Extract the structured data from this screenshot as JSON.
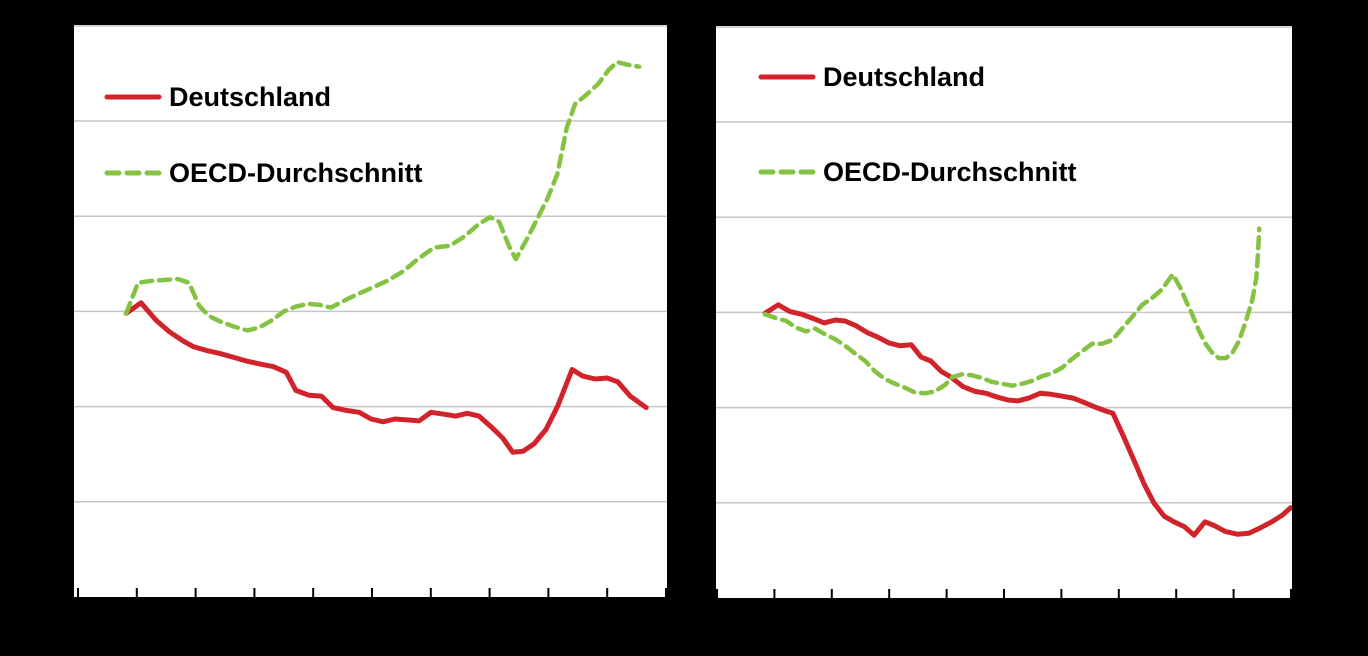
{
  "page": {
    "background": "#000000",
    "plot_background": "#ffffff",
    "gridline_color": "#c6c6c6",
    "axis_color": "#000000"
  },
  "chart_data": [
    {
      "type": "line",
      "title": "",
      "xlabel": "",
      "ylabel": "",
      "legend_position": "top-left-inside",
      "grid": "horizontal",
      "x_axis": {
        "tick_count": 11,
        "tick_labels_visible": false,
        "x_unit": "percent of plot width"
      },
      "y_axis": {
        "gridline_count": 5,
        "tick_labels_visible": false,
        "unit": "gridline intervals above x-axis",
        "range": [
          0,
          6
        ]
      },
      "series": [
        {
          "name": "Deutschland",
          "color": "#d2232a",
          "line_style": "solid",
          "points": [
            [
              8.8,
              2.98
            ],
            [
              11.3,
              3.09
            ],
            [
              13.8,
              2.91
            ],
            [
              16.0,
              2.79
            ],
            [
              18.4,
              2.69
            ],
            [
              20.1,
              2.63
            ],
            [
              22.3,
              2.59
            ],
            [
              24.5,
              2.56
            ],
            [
              26.8,
              2.52
            ],
            [
              29.0,
              2.48
            ],
            [
              31.2,
              2.45
            ],
            [
              33.6,
              2.42
            ],
            [
              35.8,
              2.36
            ],
            [
              37.4,
              2.17
            ],
            [
              39.6,
              2.12
            ],
            [
              41.7,
              2.11
            ],
            [
              43.7,
              1.99
            ],
            [
              45.9,
              1.96
            ],
            [
              48.1,
              1.94
            ],
            [
              50.1,
              1.87
            ],
            [
              52.1,
              1.84
            ],
            [
              54.1,
              1.87
            ],
            [
              56.2,
              1.86
            ],
            [
              58.2,
              1.85
            ],
            [
              60.2,
              1.94
            ],
            [
              62.4,
              1.92
            ],
            [
              64.4,
              1.9
            ],
            [
              66.3,
              1.93
            ],
            [
              68.3,
              1.9
            ],
            [
              70.3,
              1.79
            ],
            [
              72.3,
              1.67
            ],
            [
              74.0,
              1.52
            ],
            [
              75.7,
              1.53
            ],
            [
              77.6,
              1.61
            ],
            [
              79.6,
              1.76
            ],
            [
              81.6,
              2.01
            ],
            [
              84.0,
              2.39
            ],
            [
              85.8,
              2.32
            ],
            [
              87.9,
              2.29
            ],
            [
              89.9,
              2.3
            ],
            [
              91.7,
              2.26
            ],
            [
              93.8,
              2.11
            ],
            [
              96.5,
              1.99
            ]
          ]
        },
        {
          "name": "OECD-Durchschnitt",
          "color": "#84c342",
          "line_style": "dashed",
          "points": [
            [
              8.8,
              2.98
            ],
            [
              10.8,
              3.3
            ],
            [
              13.0,
              3.32
            ],
            [
              15.2,
              3.33
            ],
            [
              17.5,
              3.34
            ],
            [
              19.4,
              3.3
            ],
            [
              21.1,
              3.06
            ],
            [
              22.8,
              2.95
            ],
            [
              24.8,
              2.89
            ],
            [
              27.0,
              2.84
            ],
            [
              29.2,
              2.8
            ],
            [
              31.2,
              2.83
            ],
            [
              33.2,
              2.9
            ],
            [
              35.4,
              3.0
            ],
            [
              37.4,
              3.05
            ],
            [
              39.5,
              3.08
            ],
            [
              41.3,
              3.07
            ],
            [
              43.3,
              3.04
            ],
            [
              46.4,
              3.14
            ],
            [
              49.6,
              3.23
            ],
            [
              52.8,
              3.32
            ],
            [
              55.5,
              3.42
            ],
            [
              58.0,
              3.55
            ],
            [
              60.7,
              3.67
            ],
            [
              63.4,
              3.69
            ],
            [
              65.9,
              3.79
            ],
            [
              68.3,
              3.92
            ],
            [
              70.2,
              3.99
            ],
            [
              71.7,
              3.94
            ],
            [
              73.4,
              3.68
            ],
            [
              74.5,
              3.55
            ],
            [
              76.2,
              3.74
            ],
            [
              78.1,
              3.97
            ],
            [
              79.8,
              4.18
            ],
            [
              81.5,
              4.44
            ],
            [
              83.1,
              4.93
            ],
            [
              84.5,
              5.18
            ],
            [
              86.3,
              5.27
            ],
            [
              88.4,
              5.39
            ],
            [
              90.2,
              5.54
            ],
            [
              91.6,
              5.62
            ],
            [
              93.4,
              5.59
            ],
            [
              95.3,
              5.57
            ]
          ]
        }
      ]
    },
    {
      "type": "line",
      "title": "",
      "xlabel": "",
      "ylabel": "",
      "legend_position": "top-left-inside",
      "grid": "horizontal",
      "x_axis": {
        "tick_count": 11,
        "tick_labels_visible": false,
        "x_unit": "percent of plot width"
      },
      "y_axis": {
        "gridline_count": 5,
        "tick_labels_visible": false,
        "unit": "gridline intervals above x-axis",
        "range": [
          0,
          6
        ]
      },
      "series": [
        {
          "name": "Deutschland",
          "color": "#d2232a",
          "line_style": "solid",
          "points": [
            [
              8.5,
              2.99
            ],
            [
              10.8,
              3.08
            ],
            [
              12.8,
              3.01
            ],
            [
              14.9,
              2.98
            ],
            [
              16.7,
              2.94
            ],
            [
              18.8,
              2.89
            ],
            [
              20.7,
              2.92
            ],
            [
              22.4,
              2.91
            ],
            [
              24.3,
              2.86
            ],
            [
              26.2,
              2.79
            ],
            [
              28.1,
              2.74
            ],
            [
              30.0,
              2.68
            ],
            [
              31.9,
              2.65
            ],
            [
              33.9,
              2.66
            ],
            [
              35.6,
              2.53
            ],
            [
              37.3,
              2.49
            ],
            [
              39.1,
              2.38
            ],
            [
              40.8,
              2.32
            ],
            [
              42.9,
              2.22
            ],
            [
              45.0,
              2.17
            ],
            [
              46.9,
              2.15
            ],
            [
              48.8,
              2.11
            ],
            [
              50.7,
              2.08
            ],
            [
              52.4,
              2.07
            ],
            [
              54.3,
              2.1
            ],
            [
              56.3,
              2.15
            ],
            [
              58.2,
              2.14
            ],
            [
              60.1,
              2.12
            ],
            [
              62.0,
              2.1
            ],
            [
              63.7,
              2.06
            ],
            [
              65.6,
              2.01
            ],
            [
              67.4,
              1.97
            ],
            [
              68.9,
              1.94
            ],
            [
              70.8,
              1.69
            ],
            [
              72.6,
              1.44
            ],
            [
              74.3,
              1.2
            ],
            [
              76.0,
              1.0
            ],
            [
              77.8,
              0.86
            ],
            [
              79.5,
              0.8
            ],
            [
              81.3,
              0.75
            ],
            [
              83.0,
              0.66
            ],
            [
              84.9,
              0.8
            ],
            [
              86.5,
              0.76
            ],
            [
              88.4,
              0.7
            ],
            [
              90.5,
              0.67
            ],
            [
              92.5,
              0.68
            ],
            [
              94.6,
              0.74
            ],
            [
              96.5,
              0.8
            ],
            [
              98.3,
              0.87
            ],
            [
              99.8,
              0.95
            ]
          ]
        },
        {
          "name": "OECD-Durchschnitt",
          "color": "#84c342",
          "line_style": "dashed",
          "points": [
            [
              8.5,
              2.98
            ],
            [
              10.4,
              2.94
            ],
            [
              12.2,
              2.91
            ],
            [
              13.9,
              2.84
            ],
            [
              15.6,
              2.8
            ],
            [
              17.2,
              2.83
            ],
            [
              18.9,
              2.77
            ],
            [
              20.7,
              2.72
            ],
            [
              22.4,
              2.65
            ],
            [
              24.1,
              2.57
            ],
            [
              25.9,
              2.49
            ],
            [
              27.6,
              2.38
            ],
            [
              29.3,
              2.3
            ],
            [
              31.1,
              2.25
            ],
            [
              32.8,
              2.21
            ],
            [
              34.5,
              2.16
            ],
            [
              36.3,
              2.15
            ],
            [
              38.0,
              2.17
            ],
            [
              39.8,
              2.24
            ],
            [
              41.0,
              2.32
            ],
            [
              42.7,
              2.35
            ],
            [
              44.4,
              2.34
            ],
            [
              46.2,
              2.31
            ],
            [
              47.9,
              2.27
            ],
            [
              49.7,
              2.25
            ],
            [
              51.4,
              2.23
            ],
            [
              53.1,
              2.25
            ],
            [
              54.9,
              2.28
            ],
            [
              56.6,
              2.33
            ],
            [
              58.3,
              2.36
            ],
            [
              60.1,
              2.42
            ],
            [
              61.8,
              2.51
            ],
            [
              63.5,
              2.59
            ],
            [
              65.3,
              2.67
            ],
            [
              67.0,
              2.67
            ],
            [
              68.8,
              2.71
            ],
            [
              70.5,
              2.83
            ],
            [
              72.2,
              2.95
            ],
            [
              74.0,
              3.08
            ],
            [
              75.7,
              3.15
            ],
            [
              77.4,
              3.24
            ],
            [
              79.3,
              3.4
            ],
            [
              80.6,
              3.26
            ],
            [
              81.6,
              3.12
            ],
            [
              82.6,
              2.99
            ],
            [
              83.9,
              2.8
            ],
            [
              85.1,
              2.66
            ],
            [
              86.1,
              2.58
            ],
            [
              87.3,
              2.52
            ],
            [
              88.5,
              2.52
            ],
            [
              89.6,
              2.57
            ],
            [
              90.8,
              2.7
            ],
            [
              92.0,
              2.91
            ],
            [
              93.1,
              3.13
            ],
            [
              93.8,
              3.36
            ],
            [
              94.1,
              3.62
            ],
            [
              94.3,
              3.88
            ]
          ]
        }
      ]
    }
  ]
}
